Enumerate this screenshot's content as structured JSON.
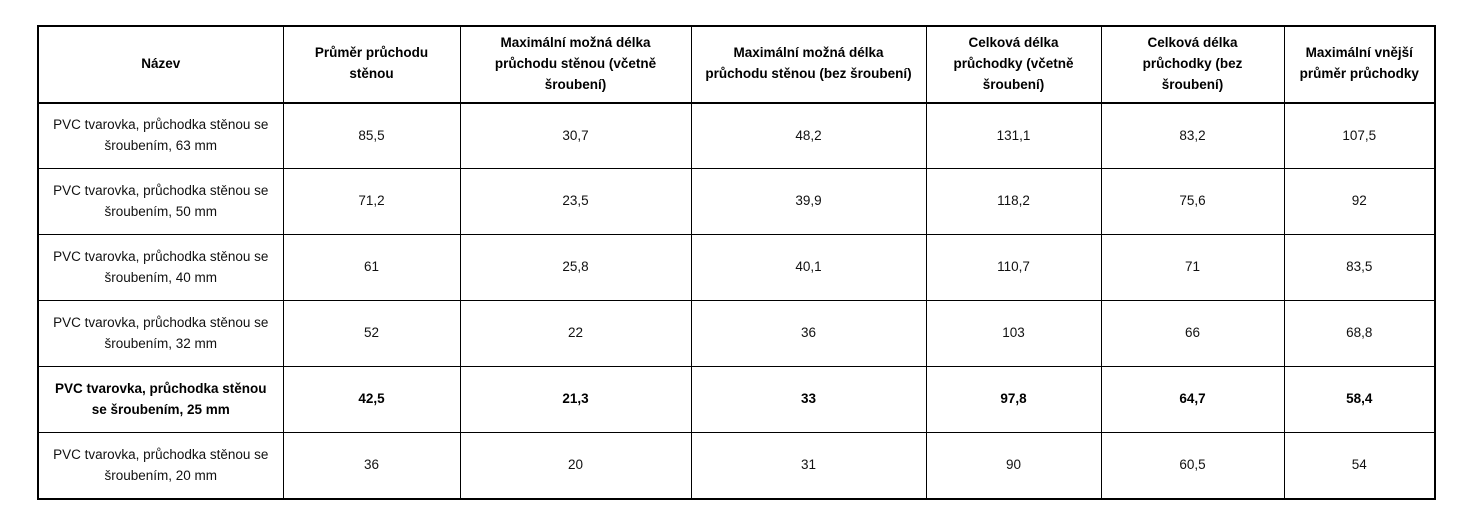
{
  "table": {
    "columns": [
      {
        "label": "Název"
      },
      {
        "label": "Průměr průchodu stěnou"
      },
      {
        "label": "Maximální možná délka průchodu stěnou (včetně šroubení)"
      },
      {
        "label": "Maximální možná délka průchodu stěnou (bez šroubení)"
      },
      {
        "label": "Celková délka průchodky (včetně šroubení)"
      },
      {
        "label": "Celková délka průchodky (bez šroubení)"
      },
      {
        "label": "Maximální vnější průměr průchodky"
      }
    ],
    "rows": [
      {
        "name": "PVC tvarovka, průchodka stěnou se šroubením, 63 mm",
        "values": [
          "85,5",
          "30,7",
          "48,2",
          "131,1",
          "83,2",
          "107,5"
        ],
        "bold": false
      },
      {
        "name": "PVC tvarovka, průchodka stěnou se šroubením, 50 mm",
        "values": [
          "71,2",
          "23,5",
          "39,9",
          "118,2",
          "75,6",
          "92"
        ],
        "bold": false
      },
      {
        "name": "PVC tvarovka, průchodka stěnou se šroubením, 40 mm",
        "values": [
          "61",
          "25,8",
          "40,1",
          "110,7",
          "71",
          "83,5"
        ],
        "bold": false
      },
      {
        "name": "PVC tvarovka, průchodka stěnou se šroubením, 32 mm",
        "values": [
          "52",
          "22",
          "36",
          "103",
          "66",
          "68,8"
        ],
        "bold": false
      },
      {
        "name": "PVC tvarovka, průchodka stěnou se šroubením, 25 mm",
        "values": [
          "42,5",
          "21,3",
          "33",
          "97,8",
          "64,7",
          "58,4"
        ],
        "bold": true
      },
      {
        "name": "PVC tvarovka, průchodka stěnou se šroubením, 20 mm",
        "values": [
          "36",
          "20",
          "31",
          "90",
          "60,5",
          "54"
        ],
        "bold": false
      }
    ],
    "colors": {
      "border": "#000000",
      "text": "#111111",
      "background": "#ffffff"
    }
  }
}
